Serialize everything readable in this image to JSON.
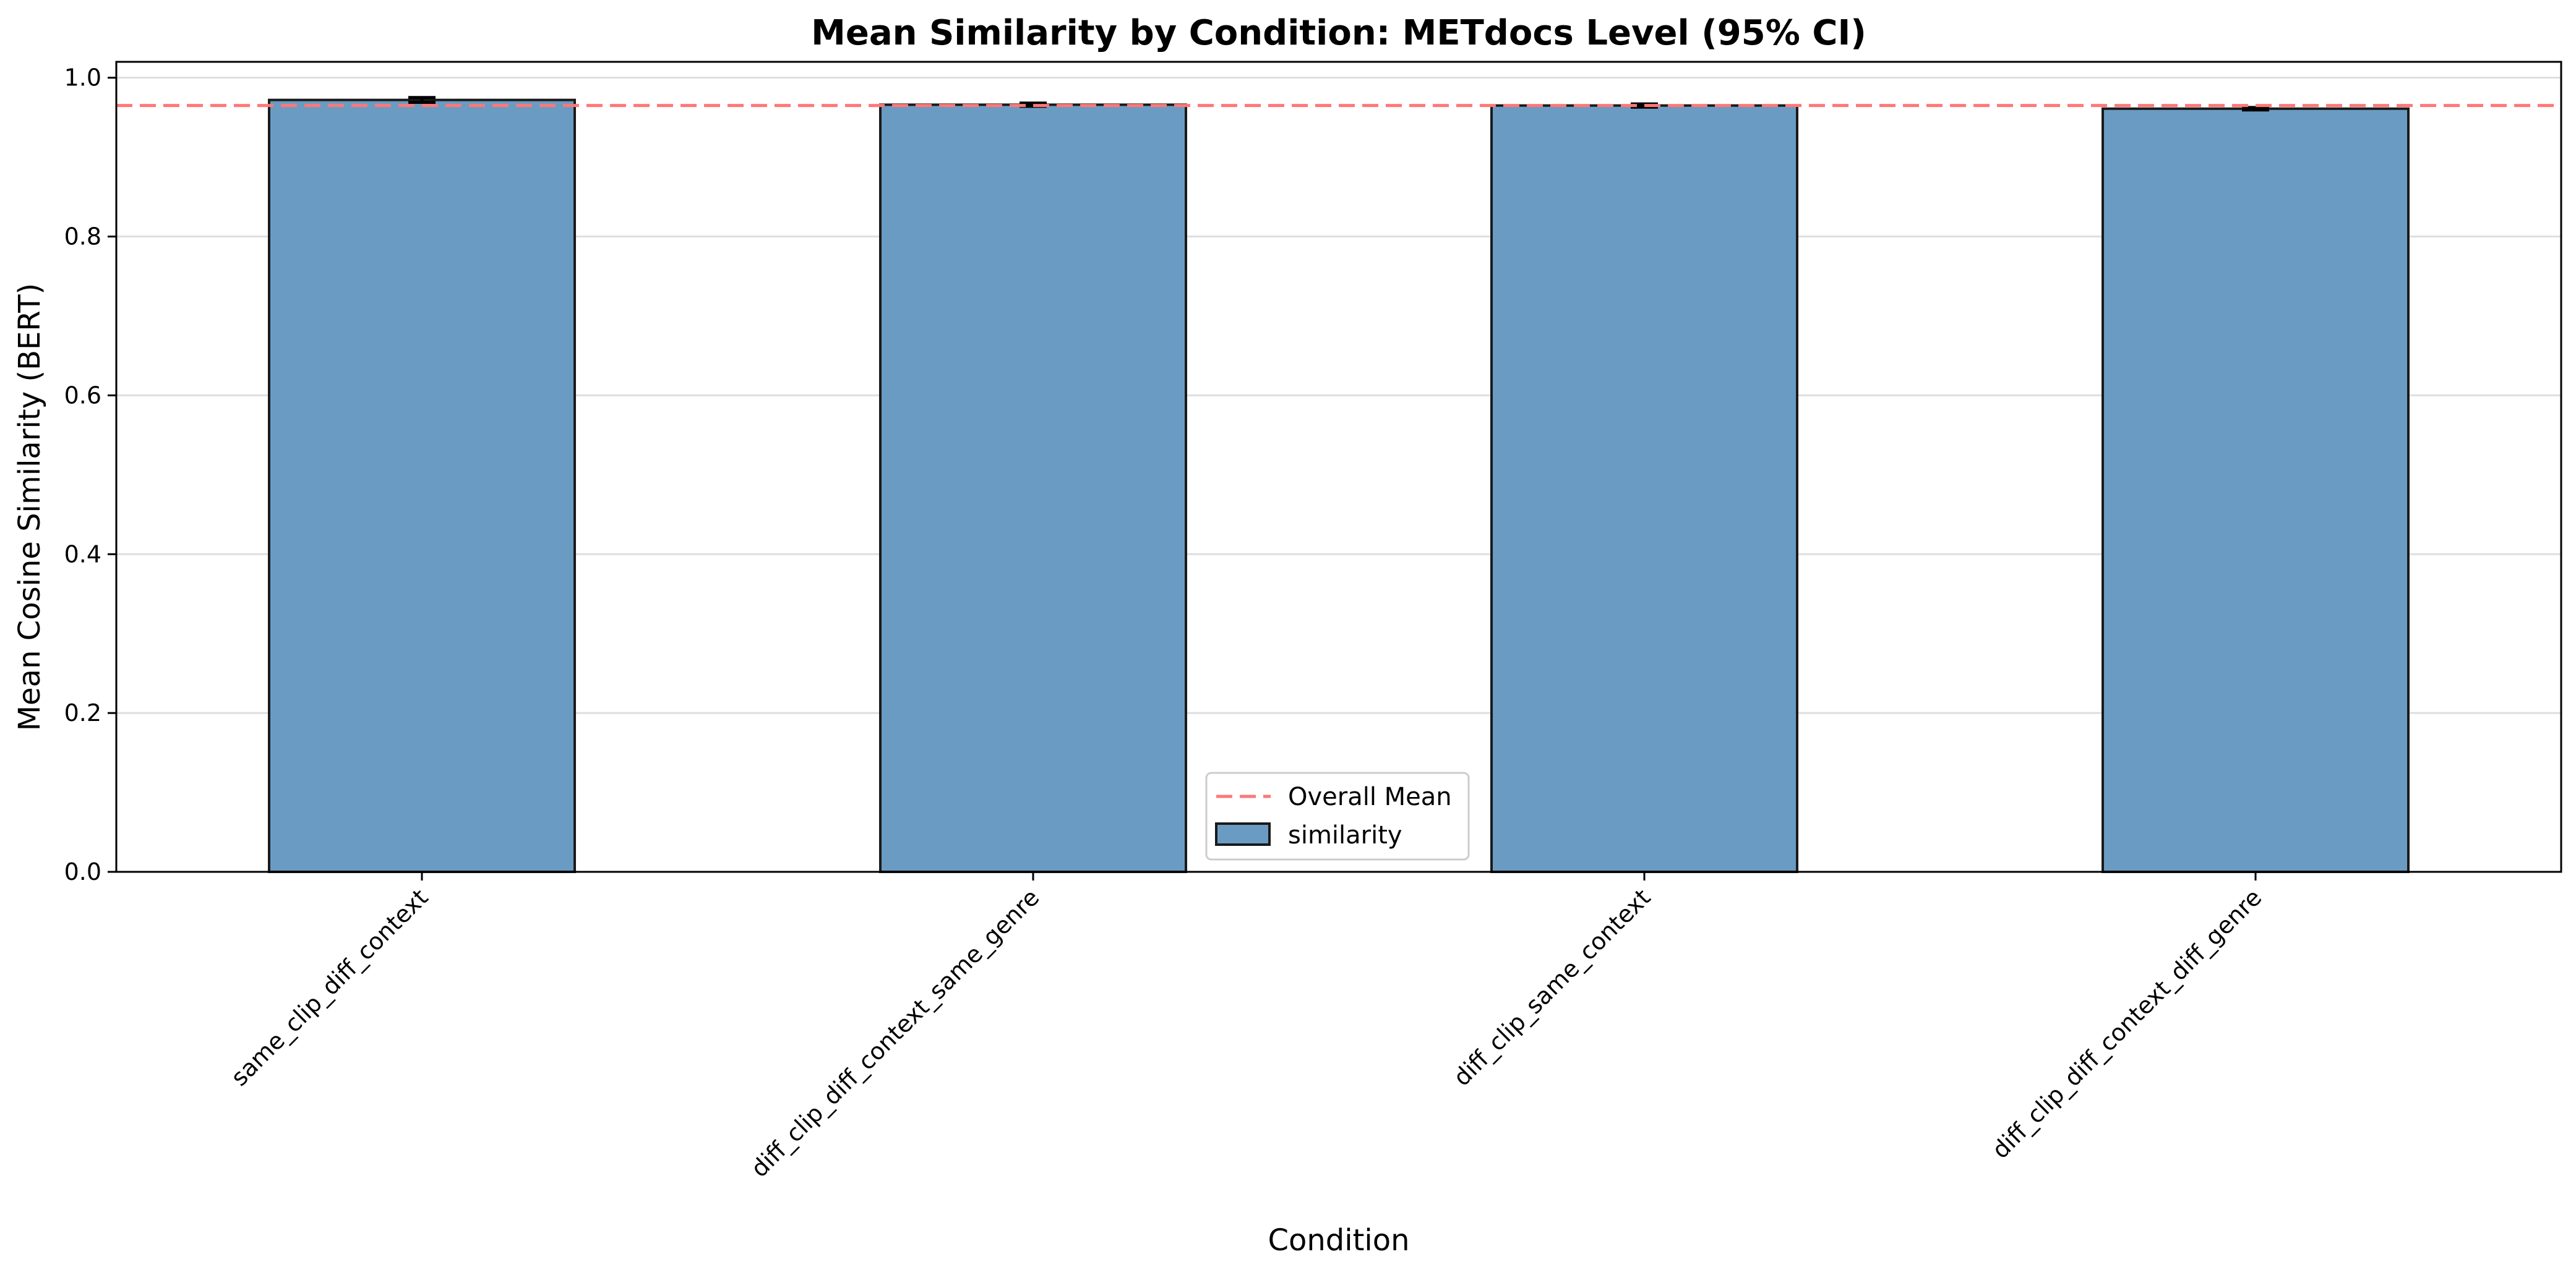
{
  "chart_data": {
    "type": "bar",
    "title": "Mean Similarity by Condition: METdocs Level (95% CI)",
    "xlabel": "Condition",
    "ylabel": "Mean Cosine Similarity (BERT)",
    "categories": [
      "same_clip_diff_context",
      "diff_clip_diff_context_same_genre",
      "diff_clip_same_context",
      "diff_clip_diff_context_diff_genre"
    ],
    "series": [
      {
        "name": "similarity",
        "values": [
          0.972,
          0.966,
          0.965,
          0.961
        ],
        "ci_low": [
          0.969,
          0.964,
          0.963,
          0.9595
        ],
        "ci_high": [
          0.975,
          0.968,
          0.967,
          0.9625
        ]
      }
    ],
    "reference_line": {
      "name": "Overall Mean",
      "value": 0.965
    },
    "ylim": [
      0,
      1.02
    ],
    "yticks": [
      "0.0",
      "0.2",
      "0.4",
      "0.6",
      "0.8",
      "1.0"
    ],
    "grid": "horizontal",
    "legend_position": "bottom-center",
    "colors": {
      "bar": "#6a9bc3",
      "bar_edge": "#1a1a1a",
      "mean_line": "#ff7777"
    }
  }
}
